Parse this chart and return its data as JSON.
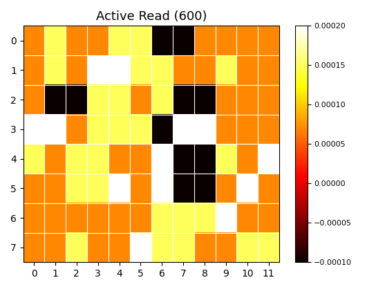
{
  "title": "Active Read (600)",
  "grid_data": [
    [
      7e-05,
      0.00015,
      7e-05,
      7e-05,
      0.00015,
      0.00015,
      -0.0001,
      -0.0001,
      7e-05,
      7e-05,
      7e-05,
      7e-05
    ],
    [
      7e-05,
      0.00015,
      7e-05,
      0.0002,
      0.0002,
      0.00015,
      0.00015,
      7e-05,
      7e-05,
      0.00015,
      7e-05,
      7e-05
    ],
    [
      7e-05,
      -0.0001,
      -0.0001,
      0.00015,
      0.00015,
      7e-05,
      0.00015,
      -0.0001,
      -0.0001,
      7e-05,
      7e-05,
      7e-05
    ],
    [
      0.0002,
      0.0002,
      7e-05,
      0.00015,
      0.00015,
      0.00015,
      -0.0001,
      0.0002,
      0.0002,
      7e-05,
      7e-05,
      7e-05
    ],
    [
      0.00015,
      7e-05,
      0.00015,
      0.00015,
      7e-05,
      7e-05,
      0.0002,
      -0.0001,
      -0.0001,
      0.00015,
      7e-05,
      0.0002
    ],
    [
      7e-05,
      7e-05,
      0.00015,
      0.00015,
      0.0002,
      7e-05,
      0.0002,
      -0.0001,
      -0.0001,
      7e-05,
      0.0002,
      7e-05
    ],
    [
      7e-05,
      7e-05,
      7e-05,
      7e-05,
      7e-05,
      7e-05,
      0.00015,
      0.00015,
      0.00015,
      0.0002,
      7e-05,
      7e-05
    ],
    [
      7e-05,
      7e-05,
      0.00015,
      7e-05,
      7e-05,
      0.0002,
      0.00015,
      0.00015,
      7e-05,
      7e-05,
      0.00015,
      0.00015
    ]
  ],
  "cmap": "hot",
  "vmin": -0.0001,
  "vmax": 0.0002,
  "figsize": [
    5.31,
    4.18
  ],
  "dpi": 100
}
